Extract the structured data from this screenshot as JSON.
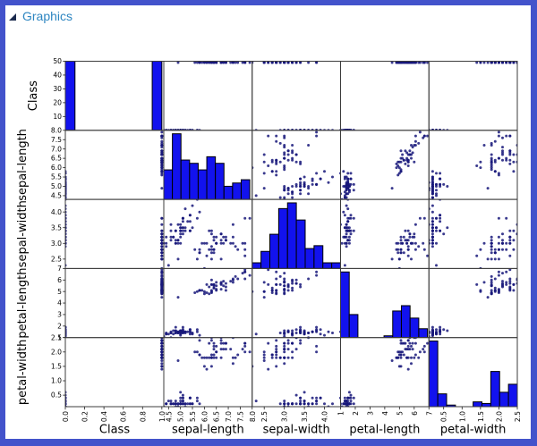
{
  "panel": {
    "title": "Graphics"
  },
  "colors": {
    "frame": "#4353cb",
    "title": "#2e86c1",
    "expander": "#1b2a4e",
    "bar_fill": "#1212ee",
    "bar_edge": "#000000",
    "marker": "#17177a",
    "cell_border": "#3c3c3c",
    "tick": "#222222"
  },
  "chart_data": {
    "type": "scatter",
    "subtype": "scatter_matrix",
    "description": "5x5 pairwise scatter-plot matrix with histograms on the diagonal; iris data with two classes (0 and 1), 50 samples each",
    "variables": [
      "Class",
      "sepal-length",
      "sepal-width",
      "petal-length",
      "petal-width"
    ],
    "histogram_bins": 10,
    "grid": "off",
    "legend": "none",
    "axes": [
      {
        "name": "Class",
        "lim": [
          0,
          1.02
        ],
        "ticks": [
          "0.0",
          "0.2",
          "0.4",
          "0.6",
          "0.8",
          "1.0"
        ]
      },
      {
        "name": "sepal-length",
        "lim": [
          4.3,
          8.0
        ],
        "ticks": [
          "4.5",
          "5.0",
          "5.5",
          "6.0",
          "6.5",
          "7.0",
          "7.5",
          "8.0"
        ]
      },
      {
        "name": "sepal-width",
        "lim": [
          2.2,
          4.4
        ],
        "ticks": [
          "2.5",
          "3.0",
          "3.5",
          "4.0"
        ]
      },
      {
        "name": "petal-length",
        "lim": [
          1.0,
          7.0
        ],
        "ticks": [
          "1",
          "2",
          "3",
          "4",
          "5",
          "6",
          "7"
        ]
      },
      {
        "name": "petal-width",
        "lim": [
          0.1,
          2.5
        ],
        "ticks": [
          "0.5",
          "1.0",
          "1.5",
          "2.0",
          "2.5"
        ]
      }
    ],
    "count_axis": {
      "row": 0,
      "lim": [
        0,
        50
      ],
      "ticks": [
        "10",
        "20",
        "30",
        "40",
        "50"
      ]
    },
    "rows": [
      [
        0,
        5.1,
        3.5,
        1.4,
        0.2
      ],
      [
        0,
        4.9,
        3.0,
        1.4,
        0.2
      ],
      [
        0,
        4.7,
        3.2,
        1.3,
        0.2
      ],
      [
        0,
        4.6,
        3.1,
        1.5,
        0.2
      ],
      [
        0,
        5.0,
        3.6,
        1.4,
        0.2
      ],
      [
        0,
        5.4,
        3.9,
        1.7,
        0.4
      ],
      [
        0,
        4.6,
        3.4,
        1.4,
        0.3
      ],
      [
        0,
        5.0,
        3.4,
        1.5,
        0.2
      ],
      [
        0,
        4.4,
        2.9,
        1.4,
        0.2
      ],
      [
        0,
        4.9,
        3.1,
        1.5,
        0.1
      ],
      [
        0,
        5.4,
        3.7,
        1.5,
        0.2
      ],
      [
        0,
        4.8,
        3.4,
        1.6,
        0.2
      ],
      [
        0,
        4.8,
        3.0,
        1.4,
        0.1
      ],
      [
        0,
        4.3,
        3.0,
        1.1,
        0.1
      ],
      [
        0,
        5.8,
        4.0,
        1.2,
        0.2
      ],
      [
        0,
        5.7,
        4.4,
        1.5,
        0.4
      ],
      [
        0,
        5.4,
        3.9,
        1.3,
        0.4
      ],
      [
        0,
        5.1,
        3.5,
        1.4,
        0.3
      ],
      [
        0,
        5.7,
        3.8,
        1.7,
        0.3
      ],
      [
        0,
        5.1,
        3.8,
        1.5,
        0.3
      ],
      [
        0,
        5.4,
        3.4,
        1.7,
        0.2
      ],
      [
        0,
        5.1,
        3.7,
        1.5,
        0.4
      ],
      [
        0,
        4.6,
        3.6,
        1.0,
        0.2
      ],
      [
        0,
        5.1,
        3.3,
        1.7,
        0.5
      ],
      [
        0,
        4.8,
        3.4,
        1.9,
        0.2
      ],
      [
        0,
        5.0,
        3.0,
        1.6,
        0.2
      ],
      [
        0,
        5.0,
        3.4,
        1.6,
        0.4
      ],
      [
        0,
        5.2,
        3.5,
        1.5,
        0.2
      ],
      [
        0,
        5.2,
        3.4,
        1.4,
        0.2
      ],
      [
        0,
        4.7,
        3.2,
        1.6,
        0.2
      ],
      [
        0,
        4.8,
        3.1,
        1.6,
        0.2
      ],
      [
        0,
        5.4,
        3.4,
        1.5,
        0.4
      ],
      [
        0,
        5.2,
        4.1,
        1.5,
        0.1
      ],
      [
        0,
        5.5,
        4.2,
        1.4,
        0.2
      ],
      [
        0,
        4.9,
        3.1,
        1.5,
        0.2
      ],
      [
        0,
        5.0,
        3.2,
        1.2,
        0.2
      ],
      [
        0,
        5.5,
        3.5,
        1.3,
        0.2
      ],
      [
        0,
        4.9,
        3.6,
        1.4,
        0.1
      ],
      [
        0,
        4.4,
        3.0,
        1.3,
        0.2
      ],
      [
        0,
        5.1,
        3.4,
        1.5,
        0.2
      ],
      [
        0,
        5.0,
        3.5,
        1.3,
        0.3
      ],
      [
        0,
        4.5,
        2.3,
        1.3,
        0.3
      ],
      [
        0,
        4.4,
        3.2,
        1.3,
        0.2
      ],
      [
        0,
        5.0,
        3.5,
        1.6,
        0.6
      ],
      [
        0,
        5.1,
        3.8,
        1.9,
        0.4
      ],
      [
        0,
        4.8,
        3.0,
        1.4,
        0.3
      ],
      [
        0,
        5.1,
        3.8,
        1.6,
        0.2
      ],
      [
        0,
        4.6,
        3.2,
        1.4,
        0.2
      ],
      [
        0,
        5.3,
        3.7,
        1.5,
        0.2
      ],
      [
        0,
        5.0,
        3.3,
        1.4,
        0.2
      ],
      [
        1,
        6.3,
        3.3,
        6.0,
        2.5
      ],
      [
        1,
        5.8,
        2.7,
        5.1,
        1.9
      ],
      [
        1,
        7.1,
        3.0,
        5.9,
        2.1
      ],
      [
        1,
        6.3,
        2.9,
        5.6,
        1.8
      ],
      [
        1,
        6.5,
        3.0,
        5.8,
        2.2
      ],
      [
        1,
        7.6,
        3.0,
        6.6,
        2.1
      ],
      [
        1,
        4.9,
        2.5,
        4.5,
        1.7
      ],
      [
        1,
        7.3,
        2.9,
        6.3,
        1.8
      ],
      [
        1,
        6.7,
        2.5,
        5.8,
        1.8
      ],
      [
        1,
        7.2,
        3.6,
        6.1,
        2.5
      ],
      [
        1,
        6.5,
        3.2,
        5.1,
        2.0
      ],
      [
        1,
        6.4,
        2.7,
        5.3,
        1.9
      ],
      [
        1,
        6.8,
        3.0,
        5.5,
        2.1
      ],
      [
        1,
        5.7,
        2.5,
        5.0,
        2.0
      ],
      [
        1,
        5.8,
        2.8,
        5.1,
        2.4
      ],
      [
        1,
        6.4,
        3.2,
        5.3,
        2.3
      ],
      [
        1,
        6.5,
        3.0,
        5.5,
        1.8
      ],
      [
        1,
        7.7,
        3.8,
        6.7,
        2.2
      ],
      [
        1,
        7.7,
        2.6,
        6.9,
        2.3
      ],
      [
        1,
        6.0,
        2.2,
        5.0,
        1.5
      ],
      [
        1,
        6.9,
        3.2,
        5.7,
        2.3
      ],
      [
        1,
        5.6,
        2.8,
        4.9,
        2.0
      ],
      [
        1,
        7.7,
        2.8,
        6.7,
        2.0
      ],
      [
        1,
        6.3,
        2.7,
        4.9,
        1.8
      ],
      [
        1,
        6.7,
        3.3,
        5.7,
        2.1
      ],
      [
        1,
        7.2,
        3.2,
        6.0,
        1.8
      ],
      [
        1,
        6.2,
        2.8,
        4.8,
        1.8
      ],
      [
        1,
        6.1,
        3.0,
        4.9,
        1.8
      ],
      [
        1,
        6.4,
        2.8,
        5.6,
        2.1
      ],
      [
        1,
        7.2,
        3.0,
        5.8,
        1.6
      ],
      [
        1,
        7.4,
        2.8,
        6.1,
        1.9
      ],
      [
        1,
        7.9,
        3.8,
        6.4,
        2.0
      ],
      [
        1,
        6.4,
        2.8,
        5.6,
        2.2
      ],
      [
        1,
        6.3,
        2.8,
        5.1,
        1.5
      ],
      [
        1,
        6.1,
        2.6,
        5.6,
        1.4
      ],
      [
        1,
        7.7,
        3.0,
        6.1,
        2.3
      ],
      [
        1,
        6.3,
        3.4,
        5.6,
        2.4
      ],
      [
        1,
        6.4,
        3.1,
        5.5,
        1.8
      ],
      [
        1,
        6.0,
        3.0,
        4.8,
        1.8
      ],
      [
        1,
        6.9,
        3.1,
        5.4,
        2.1
      ],
      [
        1,
        6.7,
        3.1,
        5.6,
        2.4
      ],
      [
        1,
        6.9,
        3.1,
        5.1,
        2.3
      ],
      [
        1,
        5.8,
        2.7,
        5.1,
        1.9
      ],
      [
        1,
        6.8,
        3.2,
        5.9,
        2.3
      ],
      [
        1,
        6.7,
        3.3,
        5.7,
        2.5
      ],
      [
        1,
        6.7,
        3.0,
        5.2,
        2.3
      ],
      [
        1,
        6.3,
        2.5,
        5.0,
        1.9
      ],
      [
        1,
        6.5,
        3.0,
        5.2,
        2.0
      ],
      [
        1,
        6.2,
        3.4,
        5.4,
        2.3
      ],
      [
        1,
        5.9,
        3.0,
        5.1,
        1.8
      ]
    ]
  }
}
